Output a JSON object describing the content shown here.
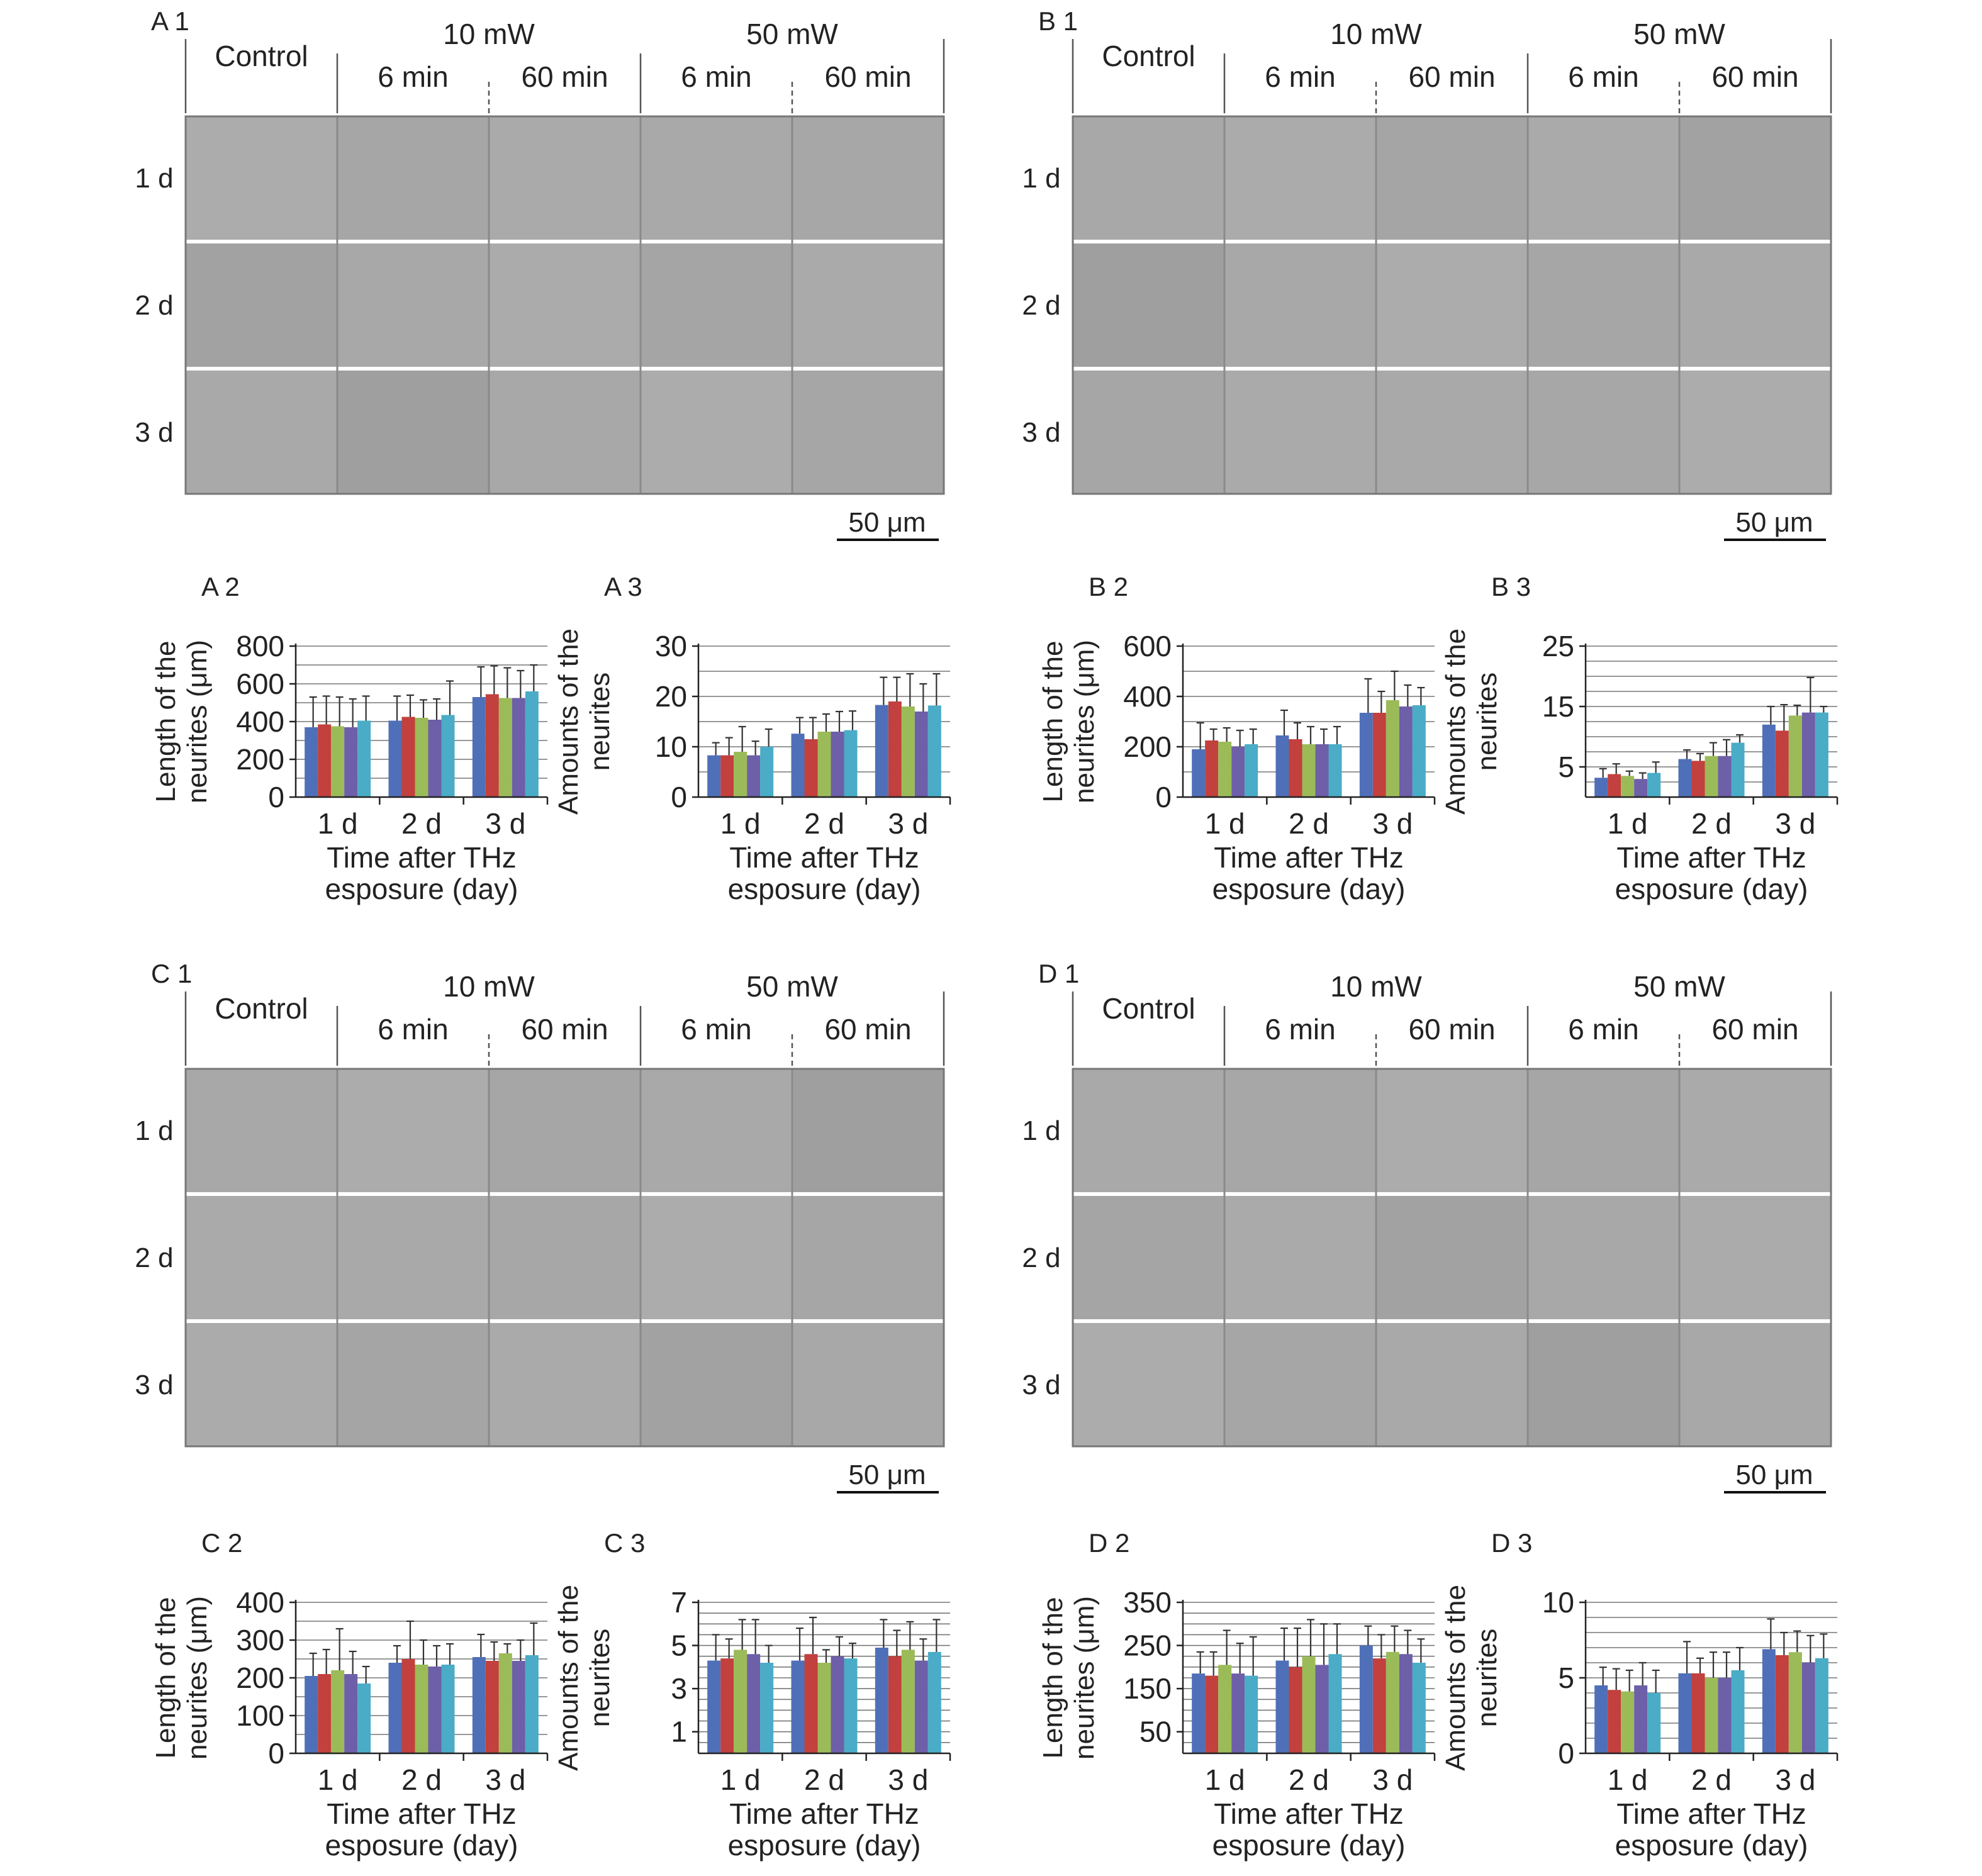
{
  "colors": [
    "#4f70b8",
    "#c2403d",
    "#9bbb59",
    "#6d5fa8",
    "#4aacc6"
  ],
  "micro_panels": [
    {
      "id": "A1",
      "panel_label": "A 1",
      "col_header": "Control",
      "power_10": "10 mW",
      "power_50": "50 mW",
      "durations": [
        "6 min",
        "60 min",
        "6 min",
        "60 min"
      ],
      "rows": [
        "1 d",
        "2 d",
        "3 d"
      ],
      "scale_bar": "50 μm"
    },
    {
      "id": "B1",
      "panel_label": "B 1",
      "col_header": "Control",
      "power_10": "10 mW",
      "power_50": "50 mW",
      "durations": [
        "6 min",
        "60 min",
        "6 min",
        "60 min"
      ],
      "rows": [
        "1 d",
        "2 d",
        "3 d"
      ],
      "scale_bar": "50 μm"
    },
    {
      "id": "C1",
      "panel_label": "C 1",
      "col_header": "Control",
      "power_10": "10 mW",
      "power_50": "50 mW",
      "durations": [
        "6 min",
        "60 min",
        "6 min",
        "60 min"
      ],
      "rows": [
        "1 d",
        "2 d",
        "3 d"
      ],
      "scale_bar": "50 μm"
    },
    {
      "id": "D1",
      "panel_label": "D 1",
      "col_header": "Control",
      "power_10": "10 mW",
      "power_50": "50 mW",
      "durations": [
        "6 min",
        "60 min",
        "6 min",
        "60 min"
      ],
      "rows": [
        "1 d",
        "2 d",
        "3 d"
      ],
      "scale_bar": "50 μm"
    }
  ],
  "chart_data": [
    {
      "id": "A2",
      "panel_label": "A 2",
      "type": "bar",
      "categories": [
        "1 d",
        "2 d",
        "3 d"
      ],
      "ylabel": [
        "Length of the",
        "neurites (μm)"
      ],
      "xlabel": [
        "Time after THz",
        "esposure (day)"
      ],
      "ylim": [
        0,
        800
      ],
      "yticks": [
        0,
        200,
        400,
        600,
        800
      ],
      "minor_step": 100,
      "series": [
        {
          "values": [
            370,
            405,
            530
          ],
          "errors": [
            160,
            130,
            160
          ]
        },
        {
          "values": [
            385,
            425,
            545
          ],
          "errors": [
            150,
            115,
            150
          ]
        },
        {
          "values": [
            375,
            420,
            525
          ],
          "errors": [
            155,
            95,
            160
          ]
        },
        {
          "values": [
            370,
            410,
            525
          ],
          "errors": [
            150,
            110,
            145
          ]
        },
        {
          "values": [
            405,
            435,
            560
          ],
          "errors": [
            130,
            180,
            140
          ]
        }
      ]
    },
    {
      "id": "A3",
      "panel_label": "A 3",
      "type": "bar",
      "categories": [
        "1 d",
        "2 d",
        "3 d"
      ],
      "ylabel": [
        "Amounts of the",
        "neurites"
      ],
      "xlabel": [
        "Time after THz",
        "esposure (day)"
      ],
      "ylim": [
        0,
        30
      ],
      "yticks": [
        0,
        10,
        20,
        30
      ],
      "minor_step": 5,
      "series": [
        {
          "values": [
            8.3,
            12.6,
            18.3
          ],
          "errors": [
            2.5,
            3.2,
            5.5
          ]
        },
        {
          "values": [
            8.3,
            11.5,
            19.0
          ],
          "errors": [
            3.5,
            4.3,
            4.8
          ]
        },
        {
          "values": [
            9.0,
            13.0,
            18.0
          ],
          "errors": [
            5.0,
            3.5,
            6.5
          ]
        },
        {
          "values": [
            8.3,
            13.0,
            17.0
          ],
          "errors": [
            2.8,
            4.0,
            5.5
          ]
        },
        {
          "values": [
            10.0,
            13.3,
            18.2
          ],
          "errors": [
            3.5,
            3.8,
            6.3
          ]
        }
      ]
    },
    {
      "id": "B2",
      "panel_label": "B 2",
      "type": "bar",
      "categories": [
        "1 d",
        "2 d",
        "3 d"
      ],
      "ylabel": [
        "Length of the",
        "neurites (μm)"
      ],
      "xlabel": [
        "Time after THz",
        "esposure (day)"
      ],
      "ylim": [
        0,
        600
      ],
      "yticks": [
        0,
        200,
        400,
        600
      ],
      "minor_step": 100,
      "series": [
        {
          "values": [
            190,
            245,
            335
          ],
          "errors": [
            105,
            100,
            135
          ]
        },
        {
          "values": [
            225,
            230,
            335
          ],
          "errors": [
            45,
            65,
            85
          ]
        },
        {
          "values": [
            220,
            210,
            385
          ],
          "errors": [
            55,
            70,
            115
          ]
        },
        {
          "values": [
            200,
            210,
            360
          ],
          "errors": [
            65,
            60,
            85
          ]
        },
        {
          "values": [
            210,
            210,
            365
          ],
          "errors": [
            60,
            70,
            70
          ]
        }
      ]
    },
    {
      "id": "B3",
      "panel_label": "B 3",
      "type": "bar",
      "categories": [
        "1 d",
        "2 d",
        "3 d"
      ],
      "ylabel": [
        "Amounts of the",
        "neurites"
      ],
      "xlabel": [
        "Time after THz",
        "esposure (day)"
      ],
      "ylim": [
        0,
        25
      ],
      "yticks": [
        5,
        15,
        25
      ],
      "minor_step": 2.5,
      "series": [
        {
          "values": [
            3.2,
            6.3,
            12.0
          ],
          "errors": [
            1.5,
            1.5,
            3.0
          ]
        },
        {
          "values": [
            3.8,
            6.0,
            11.0
          ],
          "errors": [
            1.7,
            1.2,
            4.3
          ]
        },
        {
          "values": [
            3.5,
            6.8,
            13.5
          ],
          "errors": [
            0.8,
            2.2,
            1.7
          ]
        },
        {
          "values": [
            3.0,
            6.8,
            14.0
          ],
          "errors": [
            1.0,
            2.7,
            5.8
          ]
        },
        {
          "values": [
            4.0,
            9.0,
            14.0
          ],
          "errors": [
            1.8,
            1.3,
            1.0
          ]
        }
      ]
    },
    {
      "id": "C2",
      "panel_label": "C 2",
      "type": "bar",
      "categories": [
        "1 d",
        "2 d",
        "3 d"
      ],
      "ylabel": [
        "Length of the",
        "neurites (μm)"
      ],
      "xlabel": [
        "Time after THz",
        "esposure (day)"
      ],
      "ylim": [
        0,
        400
      ],
      "yticks": [
        0,
        100,
        200,
        300,
        400
      ],
      "minor_step": 50,
      "series": [
        {
          "values": [
            205,
            240,
            255
          ],
          "errors": [
            60,
            45,
            60
          ]
        },
        {
          "values": [
            210,
            250,
            245
          ],
          "errors": [
            65,
            100,
            50
          ]
        },
        {
          "values": [
            220,
            235,
            265
          ],
          "errors": [
            110,
            65,
            25
          ]
        },
        {
          "values": [
            210,
            230,
            245
          ],
          "errors": [
            60,
            55,
            55
          ]
        },
        {
          "values": [
            185,
            235,
            260
          ],
          "errors": [
            45,
            55,
            85
          ]
        }
      ]
    },
    {
      "id": "C3",
      "panel_label": "C 3",
      "type": "bar",
      "categories": [
        "1 d",
        "2 d",
        "3 d"
      ],
      "ylabel": [
        "Amounts of the",
        "neurites"
      ],
      "xlabel": [
        "Time after THz",
        "esposure (day)"
      ],
      "ylim": [
        0,
        7
      ],
      "yticks": [
        1,
        3,
        5,
        7
      ],
      "minor_step": 0.5,
      "series": [
        {
          "values": [
            4.3,
            4.3,
            4.9
          ],
          "errors": [
            1.2,
            1.5,
            1.3
          ]
        },
        {
          "values": [
            4.4,
            4.6,
            4.5
          ],
          "errors": [
            0.9,
            1.7,
            1.2
          ]
        },
        {
          "values": [
            4.8,
            4.2,
            4.8
          ],
          "errors": [
            1.4,
            0.6,
            1.3
          ]
        },
        {
          "values": [
            4.6,
            4.5,
            4.3
          ],
          "errors": [
            1.6,
            0.9,
            1.0
          ]
        },
        {
          "values": [
            4.2,
            4.4,
            4.7
          ],
          "errors": [
            0.8,
            0.7,
            1.5
          ]
        }
      ]
    },
    {
      "id": "D2",
      "panel_label": "D 2",
      "type": "bar",
      "categories": [
        "1 d",
        "2 d",
        "3 d"
      ],
      "ylabel": [
        "Length of the",
        "neurites (μm)"
      ],
      "xlabel": [
        "Time after THz",
        "esposure (day)"
      ],
      "ylim": [
        0,
        350
      ],
      "yticks": [
        50,
        150,
        250,
        350
      ],
      "minor_step": 25,
      "series": [
        {
          "values": [
            185,
            215,
            250
          ],
          "errors": [
            50,
            75,
            45
          ]
        },
        {
          "values": [
            180,
            200,
            220
          ],
          "errors": [
            55,
            90,
            55
          ]
        },
        {
          "values": [
            205,
            225,
            235
          ],
          "errors": [
            80,
            85,
            60
          ]
        },
        {
          "values": [
            185,
            205,
            230
          ],
          "errors": [
            70,
            95,
            55
          ]
        },
        {
          "values": [
            180,
            230,
            210
          ],
          "errors": [
            90,
            70,
            55
          ]
        }
      ]
    },
    {
      "id": "D3",
      "panel_label": "D 3",
      "type": "bar",
      "categories": [
        "1 d",
        "2 d",
        "3 d"
      ],
      "ylabel": [
        "Amounts of the",
        "neurites"
      ],
      "xlabel": [
        "Time after THz",
        "esposure (day)"
      ],
      "ylim": [
        0,
        10
      ],
      "yticks": [
        0,
        5,
        10
      ],
      "minor_step": 1,
      "series": [
        {
          "values": [
            4.5,
            5.3,
            6.9
          ],
          "errors": [
            1.2,
            2.1,
            2.0
          ]
        },
        {
          "values": [
            4.2,
            5.3,
            6.5
          ],
          "errors": [
            1.4,
            1.0,
            1.5
          ]
        },
        {
          "values": [
            4.1,
            5.0,
            6.7
          ],
          "errors": [
            1.4,
            1.7,
            1.4
          ]
        },
        {
          "values": [
            4.5,
            5.0,
            6.0
          ],
          "errors": [
            1.5,
            1.7,
            1.8
          ]
        },
        {
          "values": [
            4.0,
            5.5,
            6.3
          ],
          "errors": [
            1.5,
            1.5,
            1.6
          ]
        }
      ]
    }
  ]
}
